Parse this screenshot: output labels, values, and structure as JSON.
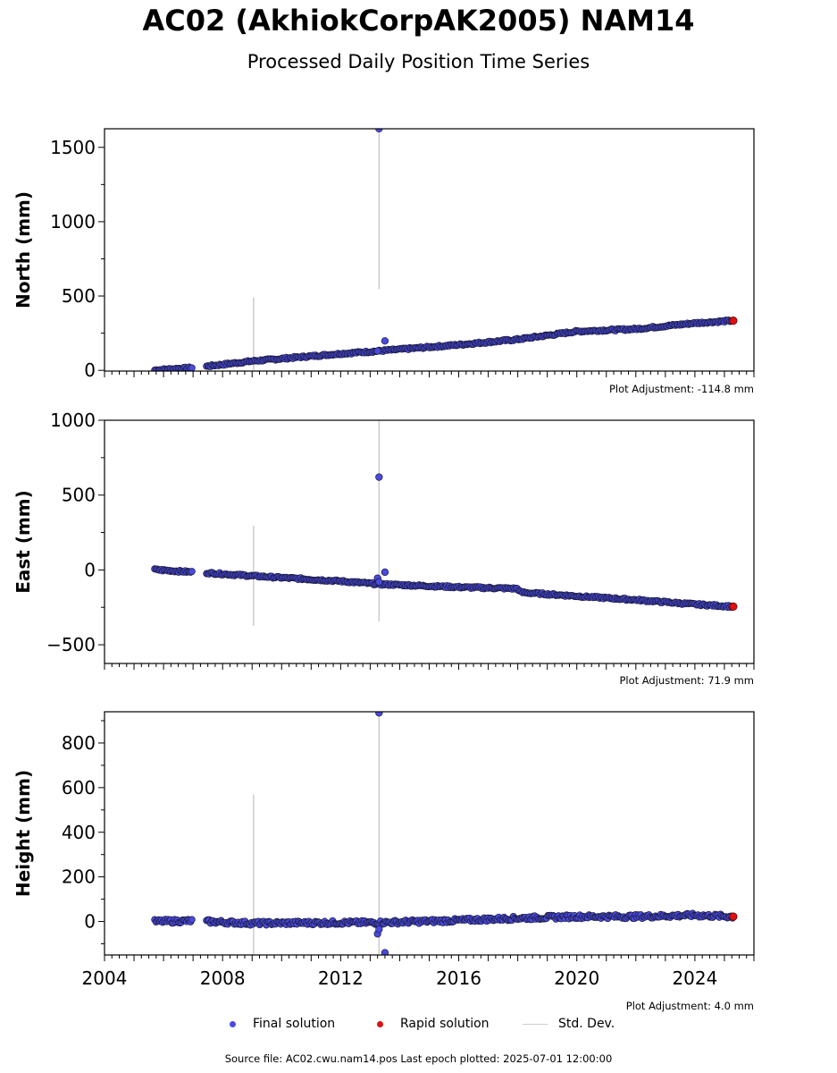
{
  "header": {
    "title": "AC02 (AkhiokCorpAK2005) NAM14",
    "subtitle": "Processed Daily Position Time Series"
  },
  "colors": {
    "final_fill": "#4a4ae0",
    "final_edge": "#1a1a3a",
    "rapid_fill": "#e01010",
    "std_dev": "#cccccc"
  },
  "legend": {
    "final": "Final solution",
    "rapid": "Rapid solution",
    "std": "Std. Dev."
  },
  "footer": {
    "source": "Source file: AC02.cwu.nam14.pos  Last epoch plotted: 2025-07-01 12:00:00"
  },
  "chart_data": [
    {
      "type": "scatter",
      "ylabel": "North (mm)",
      "ylim": [
        -5,
        1625
      ],
      "yticks": [
        0,
        500,
        1000,
        1500
      ],
      "xlim": [
        2004.0,
        2026.0
      ],
      "xticks": [],
      "adjustment": "Plot Adjustment: -114.8 mm",
      "trend": [
        [
          2005.7,
          2
        ],
        [
          2007.0,
          18
        ],
        [
          2007.5,
          28
        ],
        [
          2009,
          62
        ],
        [
          2012,
          112
        ],
        [
          2013.3,
          130
        ],
        [
          2016,
          172
        ],
        [
          2018,
          208
        ],
        [
          2020,
          262
        ],
        [
          2022,
          278
        ],
        [
          2024,
          318
        ],
        [
          2025.3,
          334
        ]
      ],
      "gaps": [
        [
          2007.0,
          2007.45
        ]
      ],
      "outliers": [
        [
          2013.3,
          1625
        ],
        [
          2013.5,
          198
        ],
        [
          2013.25,
          130
        ]
      ],
      "std_bars": [
        [
          2009.05,
          0,
          490
        ],
        [
          2013.3,
          545,
          1625
        ]
      ],
      "rapid": [
        [
          2025.3,
          334
        ]
      ]
    },
    {
      "type": "scatter",
      "ylabel": "East (mm)",
      "ylim": [
        -625,
        1000
      ],
      "yticks": [
        -500,
        0,
        500,
        1000
      ],
      "xlim": [
        2004.0,
        2026.0
      ],
      "xticks": [],
      "adjustment": "Plot Adjustment: 71.9 mm",
      "trend": [
        [
          2005.7,
          2
        ],
        [
          2007.0,
          -15
        ],
        [
          2007.5,
          -20
        ],
        [
          2009,
          -40
        ],
        [
          2012,
          -75
        ],
        [
          2013.3,
          -95
        ],
        [
          2016,
          -115
        ],
        [
          2018,
          -125
        ],
        [
          2018.1,
          -150
        ],
        [
          2020,
          -175
        ],
        [
          2022,
          -200
        ],
        [
          2024,
          -230
        ],
        [
          2025.3,
          -245
        ]
      ],
      "gaps": [
        [
          2007.0,
          2007.45
        ]
      ],
      "outliers": [
        [
          2013.3,
          620
        ],
        [
          2013.5,
          -15
        ],
        [
          2013.25,
          -55
        ],
        [
          2013.3,
          -80
        ]
      ],
      "std_bars": [
        [
          2009.05,
          -375,
          295
        ],
        [
          2013.3,
          -345,
          1000
        ]
      ],
      "rapid": [
        [
          2025.3,
          -245
        ]
      ]
    },
    {
      "type": "scatter",
      "ylabel": "Height (mm)",
      "xlabel": "",
      "ylim": [
        -150,
        940
      ],
      "yticks": [
        0,
        200,
        400,
        600,
        800
      ],
      "xlim": [
        2004.0,
        2026.0
      ],
      "xticks": [
        2004,
        2008,
        2012,
        2016,
        2020,
        2024
      ],
      "adjustment": "Plot Adjustment: 4.0 mm",
      "trend": [
        [
          2005.7,
          0
        ],
        [
          2007.0,
          3
        ],
        [
          2007.5,
          0
        ],
        [
          2009,
          -8
        ],
        [
          2012,
          -5
        ],
        [
          2013.3,
          -5
        ],
        [
          2016,
          5
        ],
        [
          2018,
          15
        ],
        [
          2020,
          22
        ],
        [
          2022,
          22
        ],
        [
          2024,
          28
        ],
        [
          2025.3,
          22
        ]
      ],
      "gaps": [
        [
          2007.0,
          2007.45
        ]
      ],
      "outliers": [
        [
          2013.3,
          935
        ],
        [
          2013.5,
          -140
        ],
        [
          2013.25,
          -55
        ],
        [
          2013.3,
          -35
        ]
      ],
      "std_bars": [
        [
          2009.05,
          -150,
          570
        ],
        [
          2013.3,
          -150,
          940
        ]
      ],
      "rapid": [
        [
          2025.3,
          22
        ]
      ]
    }
  ]
}
